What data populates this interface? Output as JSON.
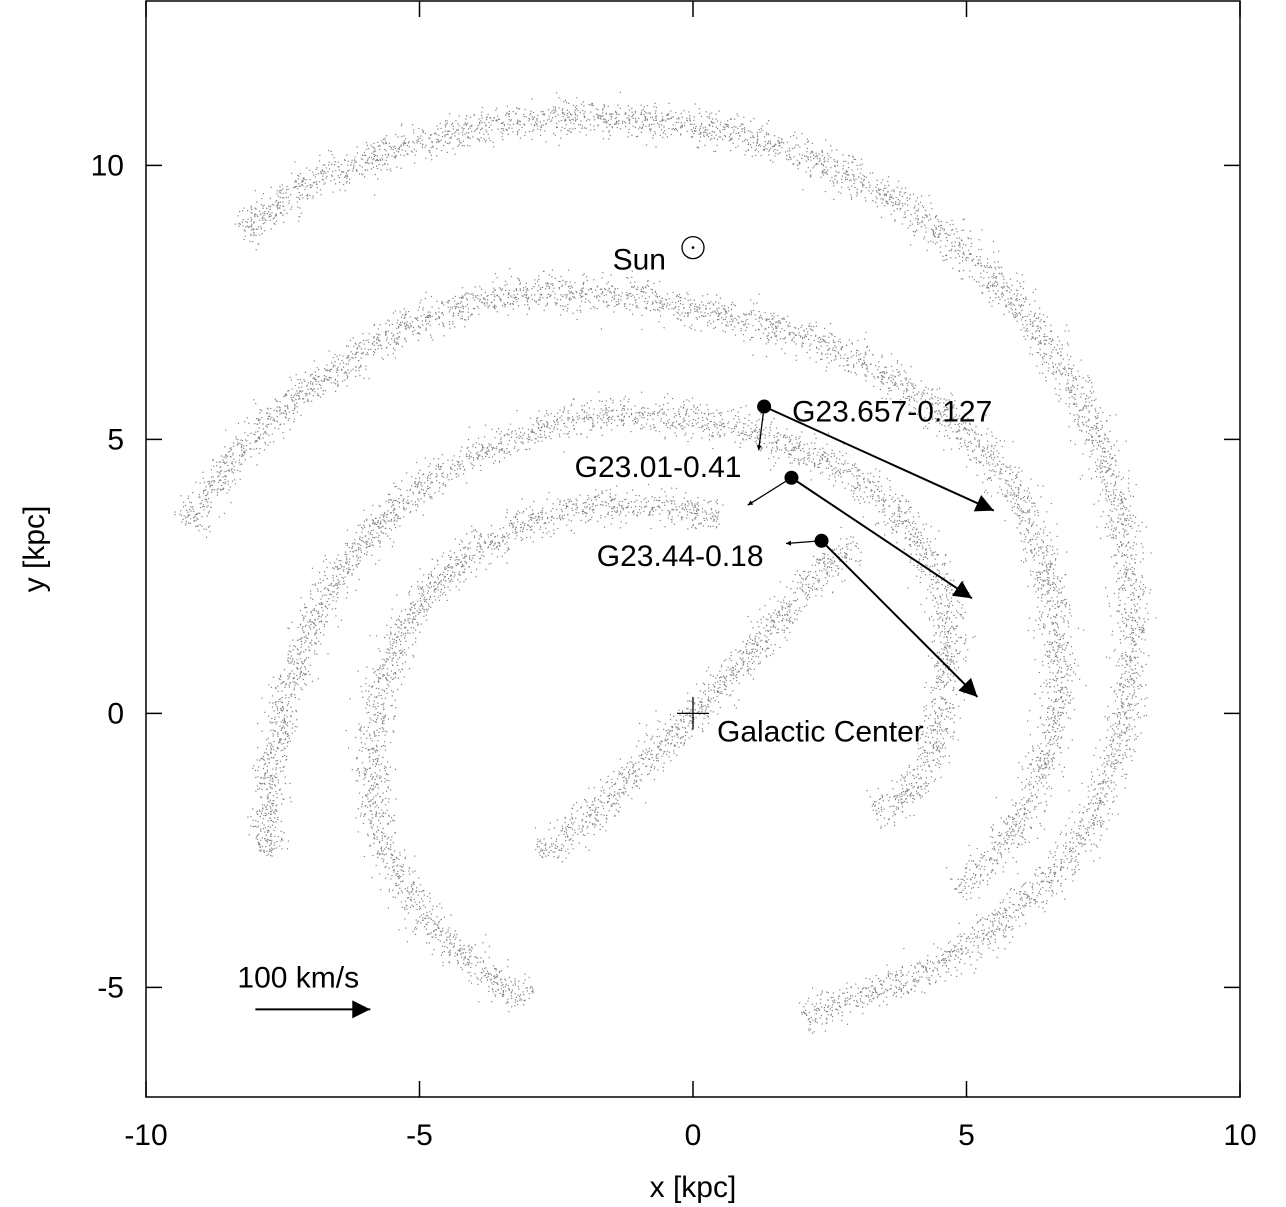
{
  "chart_data": {
    "type": "scatter",
    "title": "",
    "xlabel": "x [kpc]",
    "ylabel": "y [kpc]",
    "xlim": [
      -10,
      10
    ],
    "ylim": [
      -7,
      13
    ],
    "xticks": [
      -10,
      -5,
      0,
      5,
      10
    ],
    "yticks": [
      -5,
      0,
      5,
      10
    ],
    "grid": false,
    "background_points": {
      "description_color": "#808080",
      "arms": [
        {
          "arc": [
            [
              -8.3,
              8.8
            ],
            [
              -7.0,
              9.7
            ],
            [
              -5.5,
              10.3
            ],
            [
              -3.5,
              10.8
            ],
            [
              -1.5,
              10.9
            ],
            [
              0.5,
              10.7
            ],
            [
              2.0,
              10.2
            ],
            [
              3.5,
              9.5
            ],
            [
              4.8,
              8.6
            ],
            [
              6.0,
              7.4
            ],
            [
              6.8,
              6.2
            ],
            [
              7.4,
              5.0
            ],
            [
              7.8,
              3.7
            ],
            [
              8.0,
              2.5
            ],
            [
              8.0,
              1.0
            ],
            [
              7.8,
              -0.5
            ],
            [
              7.4,
              -1.8
            ],
            [
              6.6,
              -2.9
            ],
            [
              5.5,
              -3.9
            ],
            [
              4.5,
              -4.6
            ],
            [
              3.2,
              -5.1
            ],
            [
              2.0,
              -5.5
            ]
          ]
        },
        {
          "arc": [
            [
              -9.2,
              3.4
            ],
            [
              -8.7,
              4.3
            ],
            [
              -8.0,
              5.1
            ],
            [
              -7.0,
              6.0
            ],
            [
              -6.0,
              6.6
            ],
            [
              -5.0,
              7.2
            ],
            [
              -3.7,
              7.6
            ],
            [
              -2.5,
              7.7
            ],
            [
              -1.0,
              7.6
            ],
            [
              0.5,
              7.3
            ],
            [
              2.0,
              6.9
            ],
            [
              3.5,
              6.2
            ],
            [
              4.7,
              5.4
            ],
            [
              5.5,
              4.6
            ],
            [
              6.1,
              3.7
            ],
            [
              6.4,
              2.8
            ],
            [
              6.6,
              1.8
            ],
            [
              6.7,
              0.6
            ],
            [
              6.5,
              -0.6
            ],
            [
              6.1,
              -1.7
            ],
            [
              5.5,
              -2.6
            ],
            [
              4.8,
              -3.2
            ]
          ]
        },
        {
          "arc": [
            [
              -7.8,
              -2.6
            ],
            [
              -7.8,
              -1.5
            ],
            [
              -7.6,
              -0.3
            ],
            [
              -7.3,
              0.8
            ],
            [
              -6.9,
              1.8
            ],
            [
              -6.4,
              2.7
            ],
            [
              -5.7,
              3.5
            ],
            [
              -4.8,
              4.3
            ],
            [
              -3.7,
              4.9
            ],
            [
              -2.5,
              5.3
            ],
            [
              -1.3,
              5.5
            ],
            [
              0.0,
              5.4
            ],
            [
              1.3,
              5.1
            ],
            [
              2.5,
              4.6
            ],
            [
              3.4,
              4.0
            ],
            [
              4.1,
              3.2
            ],
            [
              4.5,
              2.4
            ],
            [
              4.7,
              1.5
            ],
            [
              4.6,
              0.5
            ],
            [
              4.4,
              -0.6
            ],
            [
              4.0,
              -1.5
            ],
            [
              3.3,
              -1.8
            ]
          ]
        },
        {
          "arc": [
            [
              -3.0,
              -5.2
            ],
            [
              -4.0,
              -4.6
            ],
            [
              -4.8,
              -3.9
            ],
            [
              -5.4,
              -3.0
            ],
            [
              -5.8,
              -2.0
            ],
            [
              -5.9,
              -0.9
            ],
            [
              -5.8,
              0.3
            ],
            [
              -5.4,
              1.4
            ],
            [
              -4.8,
              2.3
            ],
            [
              -4.0,
              3.0
            ],
            [
              -3.0,
              3.5
            ],
            [
              -2.0,
              3.8
            ],
            [
              -0.8,
              3.8
            ],
            [
              0.5,
              3.6
            ]
          ]
        },
        {
          "arc": [
            [
              -2.8,
              -2.6
            ],
            [
              -1.8,
              -1.8
            ],
            [
              -0.8,
              -0.8
            ],
            [
              0.2,
              0.2
            ],
            [
              1.0,
              1.0
            ],
            [
              1.6,
              1.8
            ],
            [
              2.3,
              2.6
            ],
            [
              3.0,
              3.1
            ]
          ]
        }
      ]
    },
    "markers": [
      {
        "name": "Sun",
        "x": 0.0,
        "y": 8.5,
        "symbol": "sun"
      },
      {
        "name": "Galactic Center",
        "x": 0.0,
        "y": 0.0,
        "symbol": "cross"
      }
    ],
    "sources": [
      {
        "name": "G23.657-0.127",
        "x": 1.3,
        "y": 5.6,
        "vec_long": [
          5.5,
          3.7
        ],
        "vec_short": [
          1.2,
          4.8
        ]
      },
      {
        "name": "G23.01-0.41",
        "x": 1.8,
        "y": 4.3,
        "vec_long": [
          5.1,
          2.1
        ],
        "vec_short": [
          1.0,
          3.8
        ]
      },
      {
        "name": "G23.44-0.18",
        "x": 2.35,
        "y": 3.15,
        "vec_long": [
          5.2,
          0.3
        ],
        "vec_short": [
          1.7,
          3.1
        ]
      }
    ],
    "scale_arrow": {
      "label": "100 km/s",
      "x_start": -8.0,
      "x_end": -5.9,
      "y": -5.4
    }
  }
}
